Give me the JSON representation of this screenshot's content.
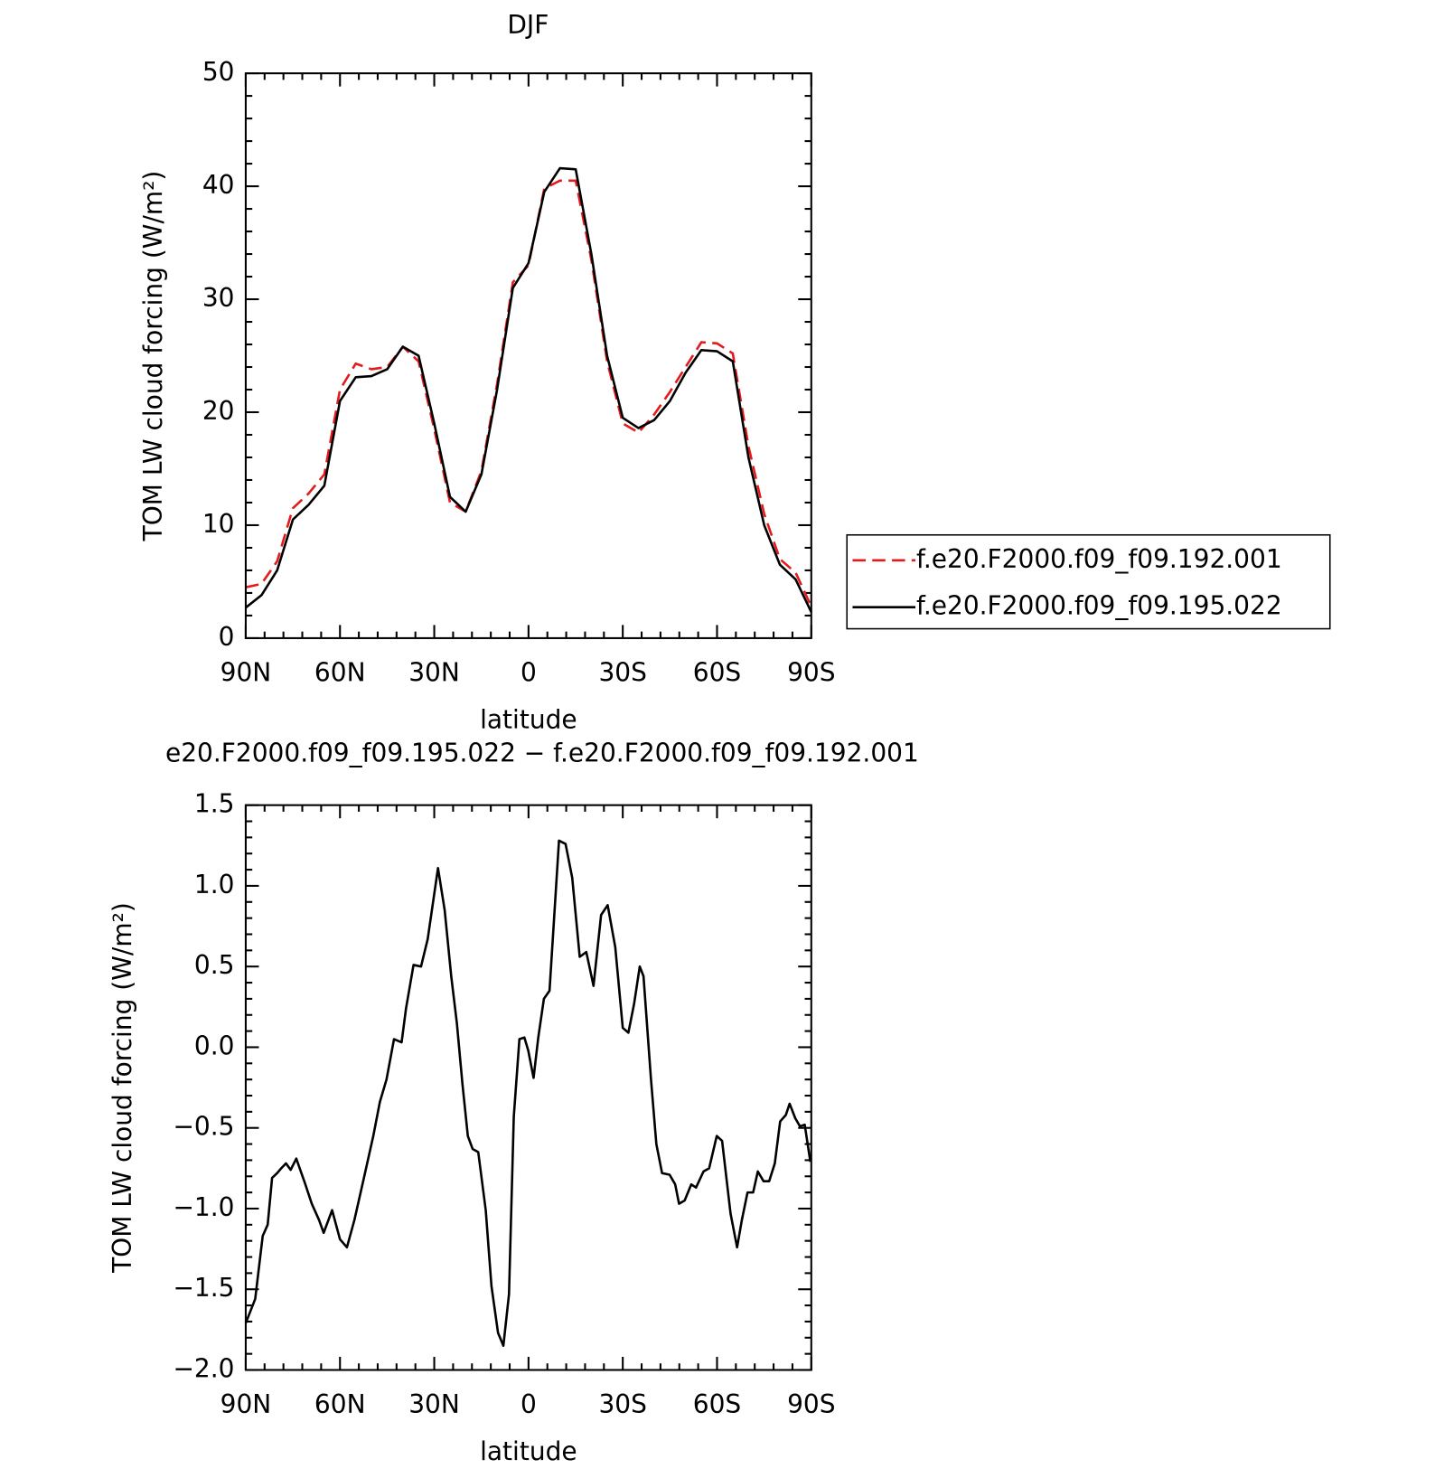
{
  "chart_data": [
    {
      "type": "line",
      "title": "DJF",
      "xlabel": "latitude",
      "ylabel": "TOM LW cloud forcing (W/m²)",
      "x": [
        90,
        85,
        80,
        75,
        70,
        65,
        60,
        55,
        50,
        45,
        40,
        35,
        30,
        25,
        20,
        15,
        10,
        5,
        0,
        -5,
        -10,
        -15,
        -20,
        -25,
        -30,
        -35,
        -40,
        -45,
        -50,
        -55,
        -60,
        -65,
        -70,
        -75,
        -80,
        -85,
        -90
      ],
      "series": [
        {
          "name": "f.e20.F2000.f09_f09.192.001",
          "color": "#e41a1c",
          "linestyle": "dashed",
          "values": [
            4.5,
            4.8,
            6.8,
            11.5,
            12.8,
            14.5,
            22,
            24.3,
            23.8,
            24,
            25.8,
            24.5,
            18.5,
            12,
            11.2,
            14.8,
            22.5,
            31.5,
            33,
            39.8,
            40.5,
            40.5,
            33.5,
            24.5,
            19,
            18.2,
            19.8,
            21.8,
            24,
            26.2,
            26.1,
            25.2,
            17,
            11,
            7,
            5.8,
            2.8
          ]
        },
        {
          "name": "f.e20.F2000.f09_f09.195.022",
          "color": "#000000",
          "linestyle": "solid",
          "values": [
            2.7,
            3.8,
            6,
            10.5,
            11.8,
            13.5,
            21,
            23.1,
            23.2,
            23.8,
            25.8,
            25,
            19,
            12.5,
            11.2,
            14.5,
            22,
            31,
            33.2,
            39.5,
            41.6,
            41.5,
            34,
            25,
            19.5,
            18.6,
            19.3,
            21,
            23.5,
            25.5,
            25.4,
            24.5,
            16,
            10,
            6.5,
            5.2,
            2.3
          ]
        }
      ],
      "xlim": [
        90,
        -90
      ],
      "xticks": [
        {
          "value": 90,
          "label": "90N"
        },
        {
          "value": 60,
          "label": "60N"
        },
        {
          "value": 30,
          "label": "30N"
        },
        0,
        {
          "value": -30,
          "label": "30S"
        },
        {
          "value": -60,
          "label": "60S"
        },
        {
          "value": -90,
          "label": "90S"
        }
      ],
      "ylim": [
        0,
        50
      ],
      "yticks": [
        0,
        10,
        20,
        30,
        40,
        50
      ],
      "legend": "right"
    },
    {
      "type": "line",
      "title": "e20.F2000.f09_f09.195.022 − f.e20.F2000.f09_f09.192.001",
      "xlabel": "latitude",
      "ylabel": "TOM LW cloud forcing (W/m²)",
      "x": [
        90,
        87,
        84.6,
        83,
        81.6,
        80,
        78.7,
        77.2,
        75.7,
        73.9,
        71.2,
        69,
        66.7,
        65.2,
        62.5,
        60,
        57.8,
        55.4,
        52.4,
        49.4,
        47.3,
        45.2,
        42.8,
        40.4,
        39,
        36.6,
        34.2,
        32.1,
        28.8,
        26.7,
        24.6,
        22.8,
        21,
        19.3,
        17.8,
        16,
        13.6,
        11.8,
        9.7,
        8,
        6.2,
        4.7,
        2.9,
        1.3,
        0.1,
        -1.6,
        -3.1,
        -4.9,
        -6.7,
        -9.7,
        -11.8,
        -13.9,
        -16.3,
        -18.4,
        -20.7,
        -23.1,
        -25.2,
        -27.6,
        -30,
        -31.8,
        -33.6,
        -35.4,
        -36.6,
        -39,
        -40.7,
        -42.5,
        -44.9,
        -46.7,
        -47.9,
        -49.7,
        -51.8,
        -53.3,
        -55.7,
        -57.5,
        -59.9,
        -61.6,
        -64.3,
        -66.4,
        -67.9,
        -69.7,
        -71.5,
        -73,
        -74.8,
        -76.6,
        -78.4,
        -80.1,
        -81.9,
        -83.1,
        -84.9,
        -86.4,
        -87.9,
        -89.7
      ],
      "series": [
        {
          "color": "#000000",
          "linestyle": "solid",
          "values": [
            -1.71,
            -1.56,
            -1.17,
            -1.1,
            -0.81,
            -0.78,
            -0.75,
            -0.72,
            -0.76,
            -0.69,
            -0.84,
            -0.97,
            -1.07,
            -1.15,
            -1.01,
            -1.19,
            -1.24,
            -1.07,
            -0.81,
            -0.55,
            -0.34,
            -0.2,
            0.05,
            0.03,
            0.24,
            0.51,
            0.5,
            0.67,
            1.11,
            0.85,
            0.44,
            0.15,
            -0.23,
            -0.55,
            -0.63,
            -0.65,
            -1.01,
            -1.48,
            -1.77,
            -1.85,
            -1.53,
            -0.43,
            0.05,
            0.06,
            -0.02,
            -0.19,
            0.06,
            0.3,
            0.35,
            1.28,
            1.26,
            1.05,
            0.56,
            0.59,
            0.38,
            0.82,
            0.88,
            0.62,
            0.12,
            0.09,
            0.27,
            0.5,
            0.44,
            -0.2,
            -0.6,
            -0.78,
            -0.79,
            -0.85,
            -0.97,
            -0.95,
            -0.85,
            -0.87,
            -0.77,
            -0.75,
            -0.55,
            -0.58,
            -1.03,
            -1.24,
            -1.07,
            -0.9,
            -0.9,
            -0.77,
            -0.83,
            -0.83,
            -0.72,
            -0.46,
            -0.42,
            -0.35,
            -0.44,
            -0.49,
            -0.48,
            -0.71
          ]
        }
      ],
      "xlim": [
        90,
        -90
      ],
      "xticks": [
        {
          "value": 90,
          "label": "90N"
        },
        {
          "value": 60,
          "label": "60N"
        },
        {
          "value": 30,
          "label": "30N"
        },
        0,
        {
          "value": -30,
          "label": "30S"
        },
        {
          "value": -60,
          "label": "60S"
        },
        {
          "value": -90,
          "label": "90S"
        }
      ],
      "ylim": [
        -2,
        1.5
      ],
      "yticks": [
        {
          "value": -2,
          "label": "−2.0"
        },
        {
          "value": -1.5,
          "label": "−1.5"
        },
        {
          "value": -1,
          "label": "−1.0"
        },
        {
          "value": -0.5,
          "label": "−0.5"
        },
        {
          "value": 0,
          "label": "0.0"
        },
        {
          "value": 0.5,
          "label": "0.5"
        },
        {
          "value": 1,
          "label": "1.0"
        },
        {
          "value": 1.5,
          "label": "1.5"
        }
      ]
    }
  ]
}
